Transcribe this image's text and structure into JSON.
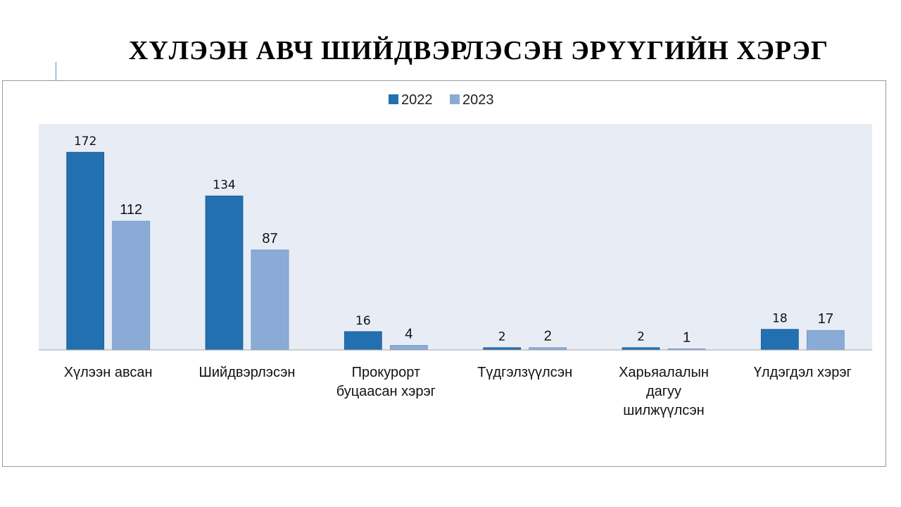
{
  "slide": {
    "title": "ХҮЛЭЭН АВЧ ШИЙДВЭРЛЭСЭН ЭРҮҮГИЙН ХЭРЭГ"
  },
  "chart_data": {
    "type": "bar",
    "categories": [
      [
        "Хүлээн авсан"
      ],
      [
        "Шийдвэрлэсэн"
      ],
      [
        "Прокурорт",
        "буцаасан хэрэг"
      ],
      [
        "Түдгэлзүүлсэн"
      ],
      [
        "Харьяалалын",
        "дагуу",
        "шилжүүлсэн"
      ],
      [
        "Үлдэгдэл хэрэг"
      ]
    ],
    "series": [
      {
        "name": "2022",
        "values": [
          172,
          134,
          16,
          2,
          2,
          18
        ],
        "color": "#2270b0"
      },
      {
        "name": "2023",
        "values": [
          112,
          87,
          4,
          2,
          1,
          17
        ],
        "color": "#8aabd6"
      }
    ],
    "ylim": [
      0,
      200
    ],
    "plot_background": "#e8ecf5",
    "legend_position": "top",
    "grid": false
  }
}
